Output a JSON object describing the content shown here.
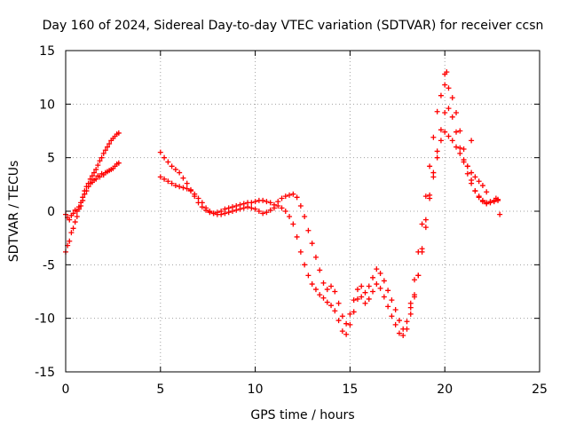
{
  "chart_data": {
    "type": "scatter",
    "title": "Day 160 of 2024, Sidereal Day-to-day VTEC variation (SDTVAR) for receiver ccsn",
    "xlabel": "GPS time / hours",
    "ylabel": "SDTVAR / TECUs",
    "xlim": [
      0,
      25
    ],
    "ylim": [
      -15,
      15
    ],
    "x_ticks": [
      0,
      5,
      10,
      15,
      20,
      25
    ],
    "y_ticks": [
      -15,
      -10,
      -5,
      0,
      5,
      10,
      15
    ],
    "grid": true,
    "marker": "+",
    "color": "#ff0000",
    "series": [
      {
        "name": "segment-1a",
        "x": [
          0.0,
          0.1,
          0.2,
          0.3,
          0.4,
          0.5,
          0.6,
          0.7,
          0.8,
          0.9,
          1.0,
          1.1,
          1.2,
          1.3,
          1.4,
          1.5,
          1.6,
          1.7,
          1.8,
          1.9,
          2.0,
          2.1,
          2.2,
          2.3,
          2.4,
          2.5,
          2.6,
          2.7,
          2.8
        ],
        "y": [
          -3.8,
          -3.2,
          -2.8,
          -2.0,
          -1.6,
          -1.0,
          -0.5,
          0.2,
          0.5,
          1.0,
          1.6,
          1.9,
          2.3,
          2.6,
          2.7,
          2.9,
          3.0,
          3.3,
          3.2,
          3.5,
          3.4,
          3.6,
          3.7,
          3.8,
          3.9,
          4.0,
          4.2,
          4.4,
          4.5
        ]
      },
      {
        "name": "segment-1b",
        "x": [
          0.0,
          0.1,
          0.2,
          0.3,
          0.4,
          0.5,
          0.6,
          0.7,
          0.8,
          0.9,
          1.0,
          1.1,
          1.2,
          1.3,
          1.4,
          1.5,
          1.6,
          1.7,
          1.8,
          1.9,
          2.0,
          2.1,
          2.2,
          2.3,
          2.4,
          2.5,
          2.6,
          2.7,
          2.8
        ],
        "y": [
          -0.3,
          -0.6,
          -0.8,
          -0.4,
          -0.2,
          0.1,
          0.0,
          0.4,
          0.8,
          1.3,
          1.9,
          2.3,
          2.6,
          3.0,
          3.3,
          3.6,
          3.9,
          4.3,
          4.7,
          5.0,
          5.4,
          5.7,
          6.0,
          6.3,
          6.6,
          6.8,
          7.0,
          7.2,
          7.3
        ]
      },
      {
        "name": "segment-2a",
        "x": [
          5.0,
          5.2,
          5.4,
          5.6,
          5.8,
          6.0,
          6.2,
          6.4,
          6.6,
          6.8,
          7.0,
          7.2,
          7.4,
          7.6,
          7.8,
          8.0,
          8.2,
          8.4,
          8.6,
          8.8,
          9.0,
          9.2,
          9.4,
          9.6,
          9.8,
          10.0,
          10.2,
          10.4,
          10.6,
          10.8,
          11.0,
          11.2,
          11.4,
          11.6,
          11.8,
          12.0,
          12.2,
          12.4,
          12.6,
          12.8,
          13.0,
          13.2,
          13.4,
          13.6,
          13.8,
          14.0,
          14.2,
          14.4,
          14.6,
          14.8,
          15.0,
          15.2,
          15.4,
          15.6,
          15.8,
          16.0,
          16.2,
          16.4,
          16.6,
          16.8,
          17.0,
          17.2,
          17.4,
          17.6,
          17.8,
          18.0,
          18.2,
          18.4,
          18.6,
          18.8,
          19.0,
          19.2,
          19.4,
          19.6,
          19.8,
          20.0,
          20.2,
          20.4,
          20.6,
          20.8,
          21.0,
          21.2,
          21.4,
          21.6,
          21.8,
          22.0,
          22.2,
          22.4,
          22.6,
          22.8
        ],
        "y": [
          5.5,
          5.0,
          4.6,
          4.2,
          3.9,
          3.6,
          3.1,
          2.6,
          2.0,
          1.4,
          0.8,
          0.4,
          0.1,
          -0.1,
          -0.2,
          -0.1,
          0.0,
          0.2,
          0.3,
          0.4,
          0.5,
          0.6,
          0.7,
          0.8,
          0.8,
          0.9,
          1.0,
          1.0,
          0.9,
          0.8,
          0.6,
          0.9,
          1.2,
          1.4,
          1.5,
          1.6,
          1.3,
          0.5,
          -0.5,
          -1.8,
          -3.0,
          -4.3,
          -5.5,
          -6.7,
          -7.3,
          -7.0,
          -7.5,
          -8.6,
          -9.8,
          -10.5,
          -9.6,
          -8.3,
          -7.3,
          -7.0,
          -7.6,
          -7.0,
          -6.2,
          -5.4,
          -5.8,
          -6.5,
          -7.4,
          -8.3,
          -9.2,
          -10.2,
          -11.0,
          -10.3,
          -8.6,
          -6.4,
          -3.8,
          -1.2,
          1.4,
          4.2,
          6.9,
          9.3,
          10.8,
          11.8,
          11.5,
          10.6,
          9.2,
          7.5,
          5.8,
          4.2,
          2.9,
          1.9,
          1.3,
          0.9,
          0.7,
          0.8,
          0.9,
          1.0
        ]
      },
      {
        "name": "segment-2b",
        "x": [
          5.0,
          5.2,
          5.4,
          5.6,
          5.8,
          6.0,
          6.2,
          6.4,
          6.6,
          6.8,
          7.0,
          7.2,
          7.4,
          7.6,
          7.8,
          8.0,
          8.2,
          8.4,
          8.6,
          8.8,
          9.0,
          9.2,
          9.4,
          9.6,
          9.8,
          10.0,
          10.2,
          10.4,
          10.6,
          10.8,
          11.0,
          11.2,
          11.4,
          11.6,
          11.8,
          12.0,
          12.2,
          12.4,
          12.6,
          12.8,
          13.0,
          13.2,
          13.4,
          13.6,
          13.8,
          14.0,
          14.2,
          14.4,
          14.6,
          14.8,
          15.0,
          15.2,
          15.4,
          15.6,
          15.8,
          16.0,
          16.2,
          16.4,
          16.6,
          16.8,
          17.0,
          17.2,
          17.4,
          17.6,
          17.8,
          18.0,
          18.2,
          18.4,
          18.6,
          18.8,
          19.0,
          19.2,
          19.4,
          19.6,
          19.8,
          20.0,
          20.2,
          20.4,
          20.6,
          20.8,
          21.0,
          21.2,
          21.4,
          21.6,
          21.8,
          22.0,
          22.2,
          22.4,
          22.6,
          22.8
        ],
        "y": [
          3.2,
          3.0,
          2.8,
          2.6,
          2.4,
          2.3,
          2.2,
          2.1,
          1.9,
          1.6,
          1.2,
          0.8,
          0.3,
          0.0,
          -0.2,
          -0.3,
          -0.3,
          -0.2,
          -0.1,
          0.0,
          0.1,
          0.2,
          0.3,
          0.4,
          0.3,
          0.2,
          0.0,
          -0.2,
          -0.1,
          0.1,
          0.3,
          0.5,
          0.3,
          0.0,
          -0.5,
          -1.2,
          -2.4,
          -3.8,
          -5.0,
          -6.0,
          -6.8,
          -7.3,
          -7.8,
          -8.1,
          -8.5,
          -8.8,
          -9.3,
          -10.2,
          -11.2,
          -11.5,
          -10.6,
          -9.4,
          -8.2,
          -8.0,
          -8.6,
          -8.2,
          -7.5,
          -6.8,
          -7.2,
          -8.0,
          -8.9,
          -9.8,
          -10.6,
          -11.4,
          -11.6,
          -11.0,
          -9.6,
          -8.0,
          -6.0,
          -3.5,
          -0.8,
          1.5,
          3.6,
          5.6,
          7.6,
          9.2,
          9.6,
          8.8,
          7.4,
          5.9,
          4.6,
          3.5,
          2.6,
          1.9,
          1.4,
          1.0,
          0.8,
          0.9,
          1.0,
          1.1
        ]
      },
      {
        "name": "segment-2c",
        "x": [
          18.2,
          18.4,
          18.6,
          18.8,
          19.0,
          19.2,
          19.4,
          19.6,
          19.8,
          20.0,
          20.2,
          20.4,
          20.6,
          20.8,
          21.0,
          21.2,
          21.4,
          21.6,
          21.8,
          22.0,
          22.2
        ],
        "y": [
          -9.0,
          -7.8,
          -6.0,
          -3.8,
          -1.5,
          1.2,
          3.2,
          5.0,
          6.6,
          7.4,
          7.0,
          6.6,
          6.0,
          5.4,
          4.8,
          4.2,
          3.6,
          3.2,
          2.8,
          2.4,
          1.8
        ]
      },
      {
        "name": "outliers",
        "x": [
          20.0,
          20.1,
          21.4,
          22.7,
          22.9
        ],
        "y": [
          12.8,
          13.0,
          6.6,
          1.2,
          -0.3
        ]
      }
    ]
  }
}
